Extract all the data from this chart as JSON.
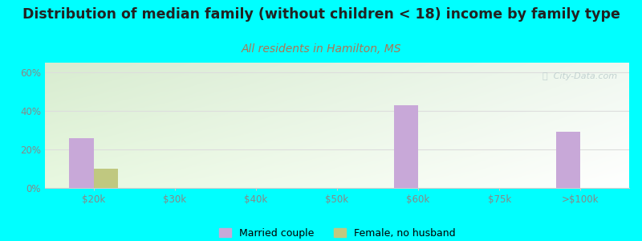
{
  "title": "Distribution of median family (without children < 18) income by family type",
  "subtitle": "All residents in Hamilton, MS",
  "background_color": "#00FFFF",
  "plot_bg_color_tl": "#d8ecd0",
  "plot_bg_color_tr": "#f0f8f0",
  "plot_bg_color_br": "#ffffff",
  "categories": [
    "$20k",
    "$30k",
    "$40k",
    "$50k",
    "$60k",
    "$75k",
    ">$100k"
  ],
  "married_couple": [
    26,
    0,
    0,
    0,
    43,
    0,
    29
  ],
  "female_no_husband": [
    10,
    0,
    0,
    0,
    0,
    0,
    0
  ],
  "married_color": "#c8a8d8",
  "female_color": "#c0c880",
  "ylabel_ticks": [
    "0%",
    "20%",
    "40%",
    "60%"
  ],
  "yticks": [
    0,
    20,
    40,
    60
  ],
  "ylim": [
    0,
    65
  ],
  "bar_width": 0.3,
  "title_fontsize": 12.5,
  "subtitle_fontsize": 10,
  "subtitle_color": "#aa7755",
  "watermark": "ⓘ  City-Data.com",
  "watermark_color": "#bbcccc",
  "title_color": "#222222",
  "tick_color": "#888888",
  "grid_color": "#dddddd"
}
